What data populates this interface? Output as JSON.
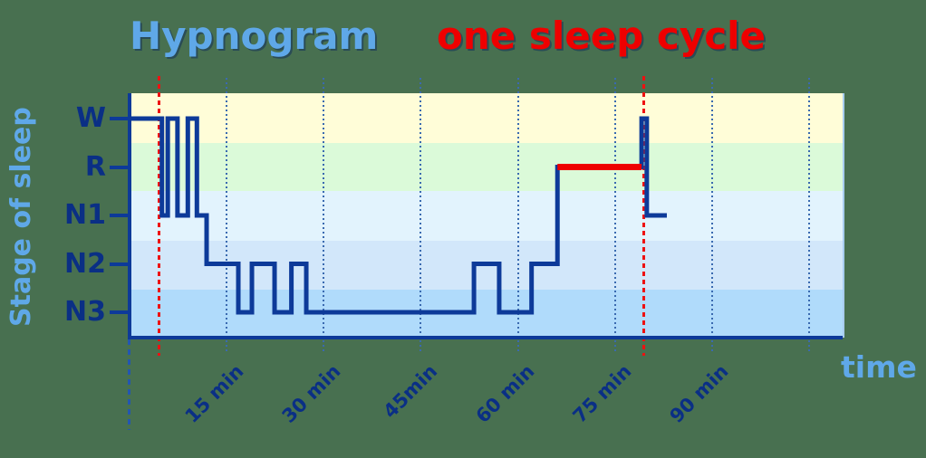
{
  "title": {
    "main": "Hypnogram",
    "highlight": "one sleep cycle"
  },
  "axes": {
    "y_label": "Stage of sleep",
    "x_label": "time",
    "stages": [
      "W",
      "R",
      "N1",
      "N2",
      "N3"
    ],
    "x_tick_labels": [
      "15 min",
      "30 min",
      "45min",
      "60 min",
      "75 min",
      "90 min"
    ]
  },
  "colors": {
    "background": "#487050",
    "title_blue": "#5fa8e8",
    "accent_red": "#ee0000",
    "line_navy": "#0d3a99",
    "text_navy": "#0a2f85",
    "grid_blue": "#3a6ab0",
    "band_wake": "#fffdd8",
    "band_rem": "#dbfad9",
    "band_n1": "#e2f3fd",
    "band_n2": "#d2e7fa",
    "band_n3": "#b0dbfb"
  },
  "chart_data": {
    "type": "line",
    "subtype": "hypnogram-step",
    "title": "Hypnogram",
    "subtitle": "one sleep cycle",
    "xlabel": "time",
    "ylabel": "Stage of sleep",
    "stage_order": [
      "W",
      "R",
      "N1",
      "N2",
      "N3"
    ],
    "xlim_minutes": [
      0,
      110
    ],
    "grid_on": true,
    "gridline_minutes": [
      15,
      30,
      45,
      60,
      75,
      90,
      105
    ],
    "x_ticks": [
      {
        "t": 15,
        "label": "15 min"
      },
      {
        "t": 30,
        "label": "30 min"
      },
      {
        "t": 45,
        "label": "45min"
      },
      {
        "t": 60,
        "label": "60 min"
      },
      {
        "t": 75,
        "label": "75 min"
      },
      {
        "t": 90,
        "label": "90 min"
      }
    ],
    "steps": [
      {
        "t": 0.0,
        "stage": "W"
      },
      {
        "t": 5.0,
        "stage": "N1"
      },
      {
        "t": 5.9,
        "stage": "W"
      },
      {
        "t": 7.4,
        "stage": "N1"
      },
      {
        "t": 9.0,
        "stage": "W"
      },
      {
        "t": 10.4,
        "stage": "N1"
      },
      {
        "t": 11.9,
        "stage": "N2"
      },
      {
        "t": 16.8,
        "stage": "N3"
      },
      {
        "t": 18.9,
        "stage": "N2"
      },
      {
        "t": 22.4,
        "stage": "N3"
      },
      {
        "t": 25.0,
        "stage": "N2"
      },
      {
        "t": 27.3,
        "stage": "N3"
      },
      {
        "t": 53.2,
        "stage": "N2"
      },
      {
        "t": 57.1,
        "stage": "N3"
      },
      {
        "t": 62.1,
        "stage": "N2"
      },
      {
        "t": 66.1,
        "stage": "R"
      },
      {
        "t": 79.1,
        "stage": "W"
      },
      {
        "t": 79.9,
        "stage": "N1"
      }
    ],
    "t_end": 83.0,
    "rem_segment": {
      "start": 66.1,
      "end": 79.1,
      "stage": "R"
    },
    "cycle_marker_minutes": [
      4.6,
      79.5
    ]
  }
}
